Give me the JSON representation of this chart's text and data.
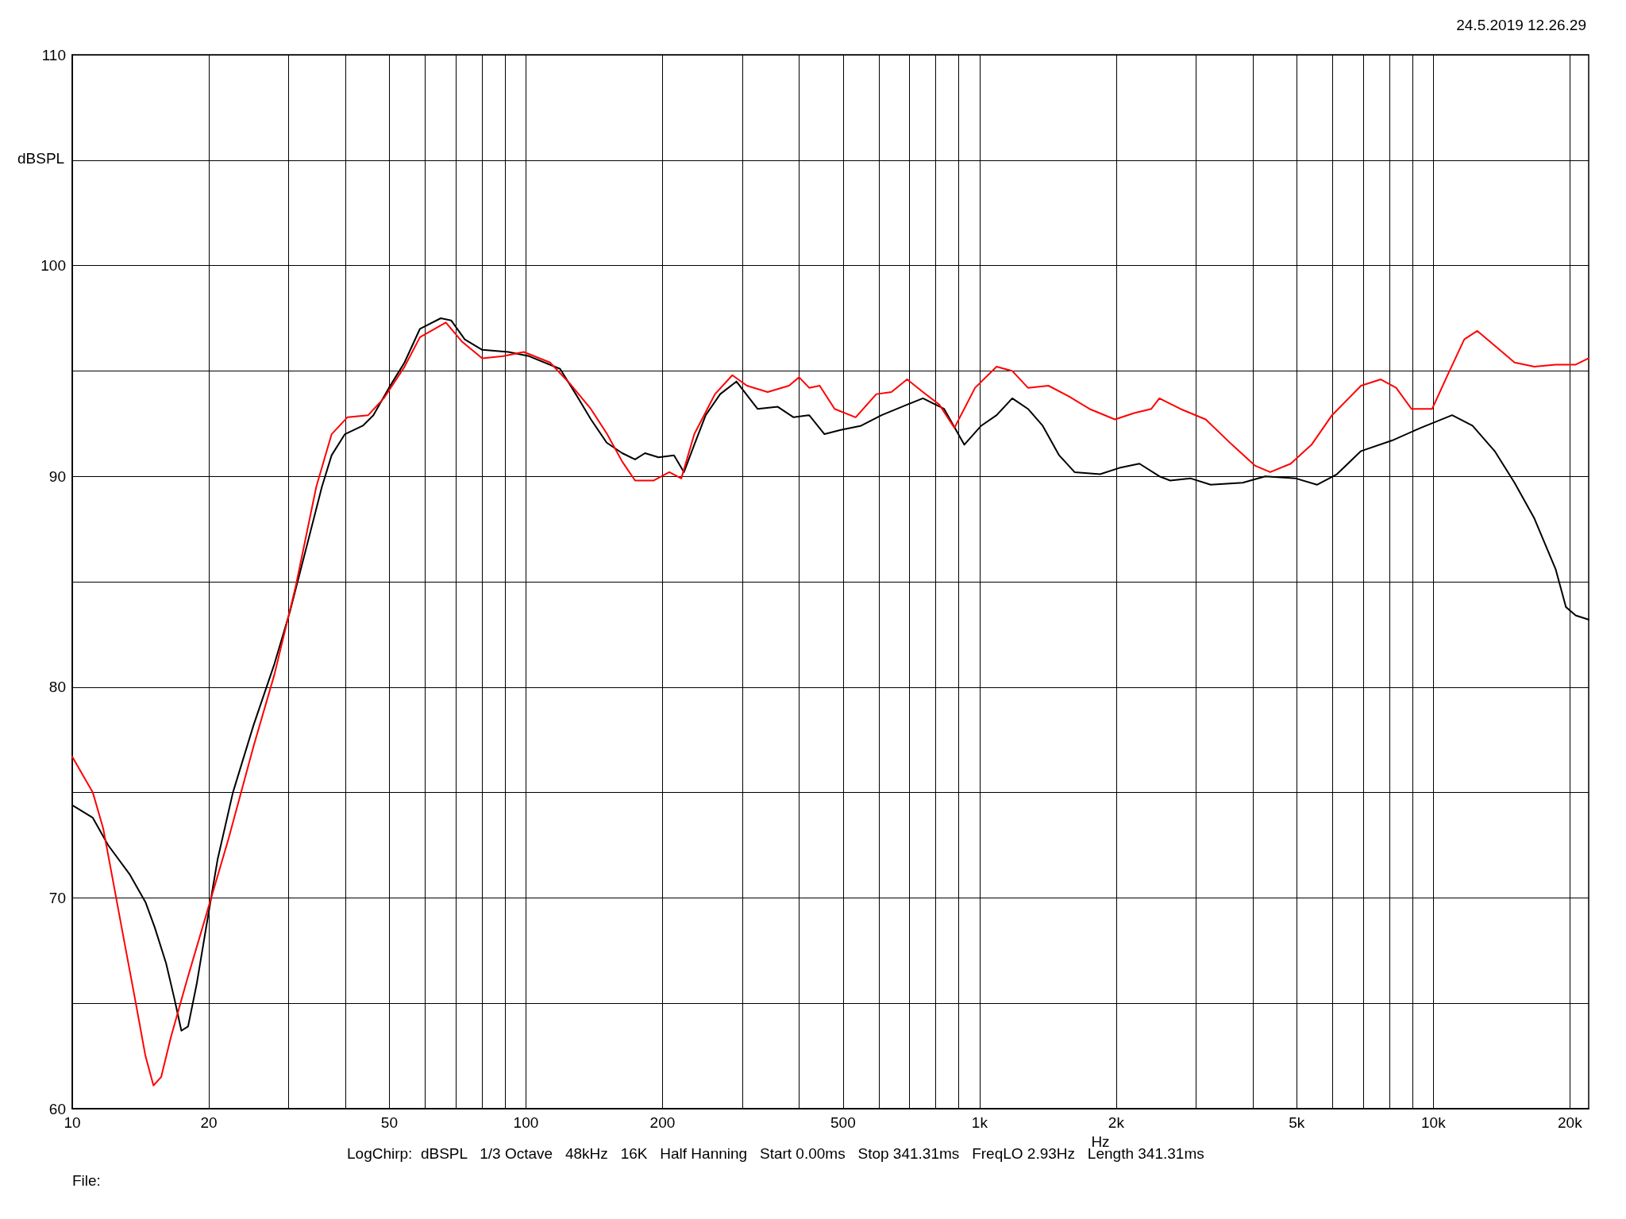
{
  "chart_data": {
    "type": "line",
    "xlabel": "Hz",
    "ylabel": "dBSPL",
    "annotations": [
      "24.5.2019 12.26.29",
      "LogChirp:  dBSPL   1/3 Octave   48kHz   16K   Half Hanning   Start 0.00ms   Stop 341.31ms   FreqLO 2.93Hz   Length 341.31ms",
      "File:"
    ],
    "log": "x",
    "grid": true,
    "marker": "none",
    "line_style": "solid",
    "xlim": [
      10,
      22000
    ],
    "xticks": [
      10,
      {
        "value": 20,
        "label": "20"
      },
      {
        "value": 30,
        "label": null
      },
      {
        "value": 40,
        "label": null
      },
      50,
      {
        "value": 60,
        "label": null
      },
      {
        "value": 70,
        "label": null
      },
      {
        "value": 80,
        "label": null
      },
      {
        "value": 90,
        "label": null
      },
      100,
      200,
      {
        "value": 300,
        "label": null
      },
      {
        "value": 400,
        "label": null
      },
      500,
      {
        "value": 600,
        "label": null
      },
      {
        "value": 700,
        "label": null
      },
      {
        "value": 800,
        "label": null
      },
      {
        "value": 900,
        "label": null
      },
      {
        "value": 1000,
        "label": "1k"
      },
      {
        "value": 2000,
        "label": "2k"
      },
      {
        "value": 3000,
        "label": null
      },
      {
        "value": 4000,
        "label": null
      },
      {
        "value": 5000,
        "label": "5k"
      },
      {
        "value": 6000,
        "label": null
      },
      {
        "value": 7000,
        "label": null
      },
      {
        "value": 8000,
        "label": null
      },
      {
        "value": 9000,
        "label": null
      },
      {
        "value": 10000,
        "label": "10k"
      },
      {
        "value": 20000,
        "label": "20k"
      }
    ],
    "ylim": [
      60,
      110
    ],
    "yticks": [
      60,
      {
        "value": 65,
        "label": null
      },
      70,
      {
        "value": 75,
        "label": null
      },
      80,
      {
        "value": 85,
        "label": null
      },
      90,
      {
        "value": 95,
        "label": null
      },
      100,
      {
        "value": 105,
        "label": null
      },
      110
    ],
    "series": [
      {
        "color": "#000000",
        "x": [
          10,
          11.1,
          12.0,
          13.4,
          14.5,
          15.2,
          16.1,
          16.8,
          17.4,
          18.0,
          18.8,
          19.8,
          20.9,
          22.6,
          25.1,
          27.9,
          30.2,
          32.7,
          35.5,
          37.3,
          39.9,
          43.7,
          46.1,
          49.9,
          54.0,
          58.4,
          64.9,
          68.4,
          73.3,
          80.1,
          91.5,
          101.6,
          118.9,
          128.8,
          139.1,
          150.6,
          163,
          174,
          183,
          196,
          212,
          223,
          235,
          249,
          268,
          291,
          324,
          359,
          389,
          421,
          455,
          494,
          548,
          608,
          692,
          750,
          835,
          925,
          1008,
          1090,
          1180,
          1278,
          1377,
          1497,
          1619,
          1843,
          2032,
          2250,
          2490,
          2630,
          2920,
          3230,
          3800,
          4260,
          4980,
          5540,
          6130,
          6930,
          8110,
          9380,
          11000,
          12200,
          13650,
          15100,
          16700,
          18600,
          19600,
          20600,
          22000
        ],
        "values": [
          74.4,
          73.8,
          72.5,
          71.1,
          69.8,
          68.6,
          66.9,
          65.2,
          63.7,
          63.9,
          65.9,
          68.8,
          71.8,
          75.0,
          78.2,
          81.1,
          83.6,
          86.5,
          89.5,
          91.0,
          92.0,
          92.4,
          92.9,
          94.2,
          95.4,
          97.0,
          97.5,
          97.4,
          96.5,
          96.0,
          95.9,
          95.7,
          95.1,
          93.9,
          92.7,
          91.6,
          91.1,
          90.8,
          91.1,
          90.9,
          91.0,
          90.2,
          91.5,
          92.9,
          93.9,
          94.5,
          93.2,
          93.3,
          92.8,
          92.9,
          92.0,
          92.2,
          92.4,
          92.9,
          93.4,
          93.7,
          93.2,
          91.5,
          92.4,
          92.9,
          93.7,
          93.2,
          92.4,
          91.0,
          90.2,
          90.1,
          90.4,
          90.6,
          90.0,
          89.8,
          89.9,
          89.6,
          89.7,
          90.0,
          89.9,
          89.6,
          90.1,
          91.2,
          91.7,
          92.3,
          92.9,
          92.4,
          91.2,
          89.7,
          88.0,
          85.6,
          83.8,
          83.4,
          83.2
        ]
      },
      {
        "color": "#ff0000",
        "x": [
          10,
          11.1,
          11.7,
          12.3,
          12.9,
          13.7,
          14.5,
          15.1,
          15.7,
          16.5,
          17.9,
          19.8,
          22.1,
          25.1,
          27.9,
          31.1,
          34.5,
          37.3,
          40.4,
          44.9,
          48.6,
          54.0,
          58.4,
          66.6,
          72.2,
          80.1,
          89.1,
          98.9,
          113,
          125,
          139,
          151,
          163,
          174,
          191,
          207,
          220,
          235,
          261,
          285,
          307,
          341,
          380,
          400,
          421,
          444,
          479,
          533,
          592,
          639,
          692,
          750,
          815,
          880,
          977,
          1090,
          1180,
          1278,
          1418,
          1572,
          1746,
          1987,
          2190,
          2390,
          2490,
          2770,
          3150,
          3600,
          4050,
          4370,
          4850,
          5390,
          5980,
          6930,
          7660,
          8280,
          8950,
          9940,
          10800,
          11700,
          12500,
          14000,
          15100,
          16700,
          18600,
          20600,
          22000
        ],
        "values": [
          76.7,
          75.0,
          73.3,
          70.8,
          68.4,
          65.4,
          62.5,
          61.1,
          61.5,
          63.4,
          66.1,
          69.3,
          72.8,
          77.2,
          80.6,
          84.8,
          89.5,
          92.0,
          92.8,
          92.9,
          93.7,
          95.2,
          96.6,
          97.3,
          96.4,
          95.6,
          95.7,
          95.9,
          95.4,
          94.4,
          93.2,
          92.0,
          90.7,
          89.8,
          89.8,
          90.2,
          89.9,
          92.0,
          93.9,
          94.8,
          94.3,
          94.0,
          94.3,
          94.7,
          94.2,
          94.3,
          93.2,
          92.8,
          93.9,
          94.0,
          94.6,
          94.0,
          93.4,
          92.3,
          94.2,
          95.2,
          95.0,
          94.2,
          94.3,
          93.8,
          93.2,
          92.7,
          93.0,
          93.2,
          93.7,
          93.2,
          92.7,
          91.5,
          90.5,
          90.2,
          90.6,
          91.5,
          92.9,
          94.3,
          94.6,
          94.2,
          93.2,
          93.2,
          94.9,
          96.5,
          96.9,
          96.0,
          95.4,
          95.2,
          95.3,
          95.3,
          95.6
        ]
      }
    ]
  }
}
